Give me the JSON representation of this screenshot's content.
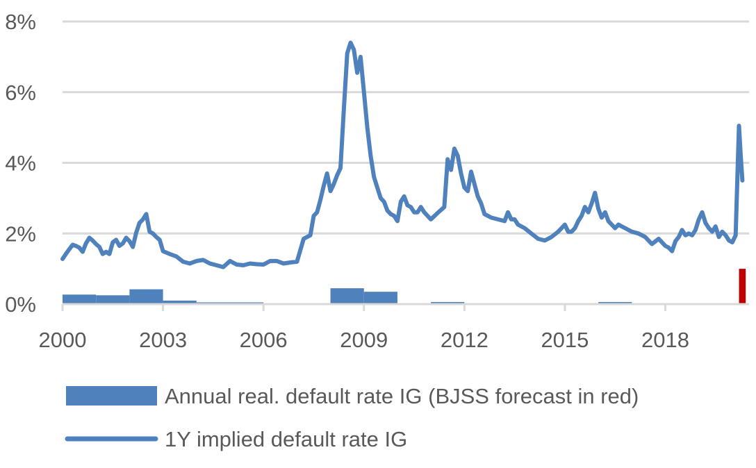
{
  "chart_data": {
    "type": "line",
    "title": "",
    "xlabel": "",
    "ylabel": "",
    "xlim": [
      2000,
      2020.5
    ],
    "ylim": [
      0,
      8
    ],
    "y_ticks": [
      "0%",
      "2%",
      "4%",
      "6%",
      "8%"
    ],
    "x_ticks": [
      "2000",
      "2003",
      "2006",
      "2009",
      "2012",
      "2015",
      "2018"
    ],
    "grid": true,
    "legend_position": "bottom",
    "colors": {
      "series": "#4F81BD",
      "forecast": "#C00000",
      "grid": "#D9D9D9",
      "axis": "#D9D9D9",
      "text": "#595959"
    },
    "series": [
      {
        "name": "Annual real. default rate IG (BJSS forecast in red)",
        "type": "bar",
        "bars": [
          {
            "start": 2000,
            "end": 2001,
            "value": 0.27
          },
          {
            "start": 2001,
            "end": 2002,
            "value": 0.25
          },
          {
            "start": 2002,
            "end": 2003,
            "value": 0.42
          },
          {
            "start": 2003,
            "end": 2004,
            "value": 0.1
          },
          {
            "start": 2004,
            "end": 2005,
            "value": 0.05
          },
          {
            "start": 2005,
            "end": 2006,
            "value": 0.05
          },
          {
            "start": 2008,
            "end": 2009,
            "value": 0.45
          },
          {
            "start": 2009,
            "end": 2010,
            "value": 0.35
          },
          {
            "start": 2011,
            "end": 2012,
            "value": 0.06
          },
          {
            "start": 2016,
            "end": 2017,
            "value": 0.06
          },
          {
            "start": 2020.2,
            "end": 2020.4,
            "value": 1.0,
            "forecast": true
          }
        ]
      },
      {
        "name": "1Y implied default rate IG",
        "type": "line",
        "x": [
          2000.0,
          2000.1,
          2000.2,
          2000.3,
          2000.4,
          2000.5,
          2000.6,
          2000.7,
          2000.8,
          2000.9,
          2001.0,
          2001.1,
          2001.2,
          2001.3,
          2001.4,
          2001.5,
          2001.6,
          2001.7,
          2001.8,
          2001.9,
          2002.0,
          2002.1,
          2002.2,
          2002.3,
          2002.4,
          2002.5,
          2002.6,
          2002.7,
          2002.8,
          2002.9,
          2003.0,
          2003.2,
          2003.4,
          2003.6,
          2003.8,
          2004.0,
          2004.2,
          2004.4,
          2004.6,
          2004.8,
          2005.0,
          2005.2,
          2005.4,
          2005.6,
          2005.8,
          2006.0,
          2006.2,
          2006.4,
          2006.6,
          2006.8,
          2007.0,
          2007.2,
          2007.4,
          2007.5,
          2007.6,
          2007.7,
          2007.8,
          2007.9,
          2008.0,
          2008.1,
          2008.2,
          2008.3,
          2008.4,
          2008.5,
          2008.6,
          2008.7,
          2008.8,
          2008.9,
          2009.0,
          2009.1,
          2009.2,
          2009.3,
          2009.4,
          2009.5,
          2009.6,
          2009.7,
          2009.8,
          2009.9,
          2010.0,
          2010.1,
          2010.2,
          2010.3,
          2010.4,
          2010.5,
          2010.6,
          2010.7,
          2010.8,
          2010.9,
          2011.0,
          2011.2,
          2011.4,
          2011.5,
          2011.6,
          2011.7,
          2011.8,
          2011.9,
          2012.0,
          2012.1,
          2012.2,
          2012.3,
          2012.4,
          2012.5,
          2012.6,
          2012.7,
          2012.8,
          2013.0,
          2013.2,
          2013.3,
          2013.4,
          2013.5,
          2013.6,
          2013.8,
          2014.0,
          2014.2,
          2014.4,
          2014.6,
          2014.8,
          2015.0,
          2015.1,
          2015.2,
          2015.3,
          2015.4,
          2015.5,
          2015.6,
          2015.7,
          2015.8,
          2015.9,
          2016.0,
          2016.1,
          2016.2,
          2016.3,
          2016.4,
          2016.5,
          2016.6,
          2016.7,
          2016.8,
          2017.0,
          2017.2,
          2017.4,
          2017.6,
          2017.8,
          2018.0,
          2018.1,
          2018.2,
          2018.3,
          2018.4,
          2018.5,
          2018.6,
          2018.7,
          2018.8,
          2018.9,
          2019.0,
          2019.1,
          2019.2,
          2019.3,
          2019.4,
          2019.5,
          2019.6,
          2019.7,
          2019.8,
          2019.9,
          2020.0,
          2020.1,
          2020.2,
          2020.25,
          2020.3
        ],
        "values": [
          1.28,
          1.42,
          1.55,
          1.68,
          1.65,
          1.6,
          1.48,
          1.72,
          1.88,
          1.8,
          1.7,
          1.62,
          1.42,
          1.48,
          1.42,
          1.75,
          1.82,
          1.65,
          1.72,
          1.88,
          1.78,
          1.62,
          2.02,
          2.3,
          2.4,
          2.55,
          2.05,
          2.0,
          1.9,
          1.82,
          1.5,
          1.42,
          1.35,
          1.2,
          1.15,
          1.22,
          1.25,
          1.15,
          1.1,
          1.05,
          1.22,
          1.12,
          1.1,
          1.15,
          1.13,
          1.12,
          1.22,
          1.22,
          1.15,
          1.18,
          1.2,
          1.85,
          1.95,
          2.5,
          2.6,
          2.95,
          3.35,
          3.7,
          3.2,
          3.4,
          3.65,
          3.85,
          5.5,
          7.1,
          7.4,
          7.2,
          6.55,
          7.0,
          6.0,
          5.0,
          4.2,
          3.6,
          3.3,
          3.0,
          2.9,
          2.65,
          2.55,
          2.5,
          2.35,
          2.9,
          3.05,
          2.8,
          2.75,
          2.6,
          2.6,
          2.75,
          2.6,
          2.5,
          2.4,
          2.58,
          2.75,
          4.1,
          3.8,
          4.4,
          4.2,
          3.7,
          3.3,
          3.2,
          3.75,
          3.4,
          3.05,
          2.85,
          2.55,
          2.5,
          2.45,
          2.4,
          2.35,
          2.6,
          2.4,
          2.4,
          2.25,
          2.15,
          2.0,
          1.85,
          1.8,
          1.9,
          2.05,
          2.25,
          2.05,
          2.05,
          2.15,
          2.35,
          2.5,
          2.75,
          2.6,
          2.85,
          3.15,
          2.7,
          2.45,
          2.6,
          2.35,
          2.25,
          2.15,
          2.25,
          2.2,
          2.15,
          2.05,
          2.0,
          1.9,
          1.7,
          1.85,
          1.65,
          1.6,
          1.5,
          1.78,
          1.9,
          2.1,
          1.95,
          2.0,
          1.95,
          2.1,
          2.4,
          2.6,
          2.3,
          2.15,
          2.05,
          2.2,
          1.9,
          2.05,
          1.95,
          1.8,
          1.75,
          1.95,
          5.05,
          4.2,
          3.5
        ]
      }
    ]
  }
}
